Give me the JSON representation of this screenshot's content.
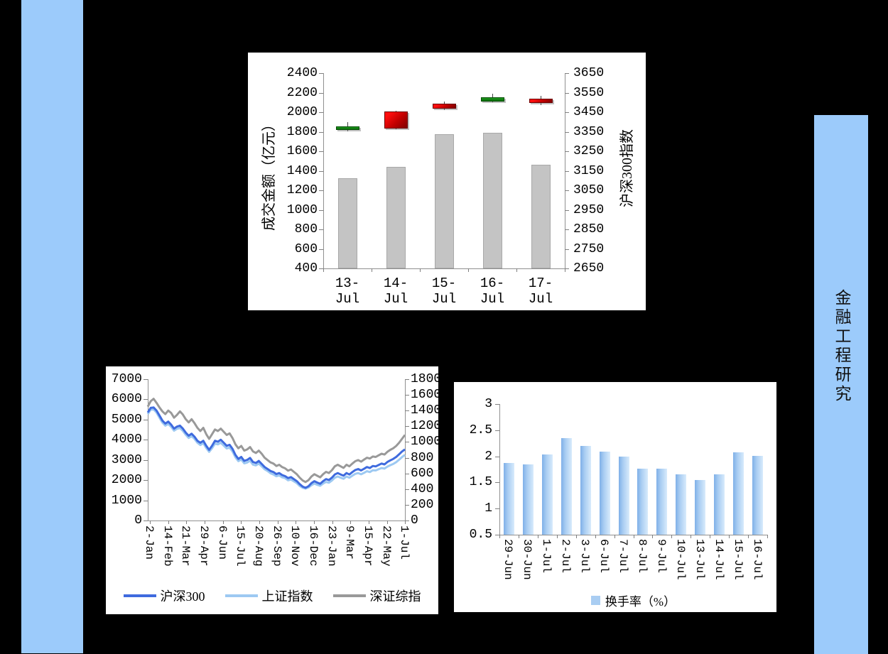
{
  "page": {
    "background": "#000000"
  },
  "side_bars": {
    "left": {
      "color": "#9CCBFB"
    },
    "right": {
      "color": "#9CCBFB",
      "title": "金融工程研究"
    }
  },
  "chart_data": [
    {
      "id": "volume-and-index",
      "type": "bar+candlestick",
      "categories": [
        "13-Jul",
        "14-Jul",
        "15-Jul",
        "16-Jul",
        "17-Jul"
      ],
      "left_axis": {
        "title": "成交金额（亿元）",
        "min": 400,
        "max": 2400,
        "step": 200,
        "ticks": [
          "2400",
          "2200",
          "2000",
          "1800",
          "1600",
          "1400",
          "1200",
          "1000",
          "800",
          "600",
          "400"
        ]
      },
      "right_axis": {
        "title": "沪深300指数",
        "min": 2650,
        "max": 3650,
        "step": 100,
        "ticks": [
          "3650",
          "3550",
          "3450",
          "3350",
          "3250",
          "3150",
          "3050",
          "2950",
          "2850",
          "2750",
          "2650"
        ]
      },
      "bars": {
        "name": "成交金额",
        "color": "#C4C4C4",
        "values": [
          1325,
          1440,
          1775,
          1790,
          1465
        ]
      },
      "candles": [
        {
          "date": "13-Jul",
          "open": 3378,
          "close": 3358,
          "high": 3400,
          "low": 3352,
          "direction": "down"
        },
        {
          "date": "14-Jul",
          "open": 3368,
          "close": 3452,
          "high": 3458,
          "low": 3362,
          "direction": "up"
        },
        {
          "date": "15-Jul",
          "open": 3468,
          "close": 3492,
          "high": 3505,
          "low": 3462,
          "direction": "up"
        },
        {
          "date": "16-Jul",
          "open": 3525,
          "close": 3505,
          "high": 3545,
          "low": 3500,
          "direction": "down"
        },
        {
          "date": "17-Jul",
          "open": 3498,
          "close": 3520,
          "high": 3532,
          "low": 3486,
          "direction": "up"
        }
      ],
      "candle_colors": {
        "up": "#D00000",
        "down": "#0E7A0E"
      }
    },
    {
      "id": "index-history-lines",
      "type": "line",
      "x_ticks": [
        "2-Jan",
        "14-Feb",
        "21-Mar",
        "29-Apr",
        "6-Jun",
        "15-Jul",
        "20-Aug",
        "26-Sep",
        "10-Nov",
        "16-Dec",
        "23-Jan",
        "9-Mar",
        "15-Apr",
        "22-May",
        "1-Jul"
      ],
      "left_axis": {
        "min": 0,
        "max": 7000,
        "step": 1000,
        "ticks": [
          "7000",
          "6000",
          "5000",
          "4000",
          "3000",
          "2000",
          "1000",
          "0"
        ]
      },
      "right_axis": {
        "min": 0,
        "max": 1800,
        "step": 200,
        "ticks": [
          "1800",
          "1600",
          "1400",
          "1200",
          "1000",
          "800",
          "600",
          "400",
          "200",
          "0"
        ]
      },
      "legend": [
        {
          "label": "沪深300",
          "color": "#3F6BDE"
        },
        {
          "label": "上证指数",
          "color": "#9DC9F2"
        },
        {
          "label": "深证综指",
          "color": "#999999"
        }
      ],
      "series": [
        {
          "name": "沪深300",
          "axis": "left",
          "color": "#3F6BDE",
          "values": [
            5350,
            5580,
            5600,
            5450,
            5200,
            4950,
            4800,
            4900,
            4750,
            4550,
            4650,
            4700,
            4550,
            4350,
            4200,
            4300,
            4150,
            3950,
            3850,
            3950,
            3700,
            3500,
            3700,
            3950,
            3900,
            4000,
            3850,
            3700,
            3750,
            3550,
            3250,
            3050,
            3150,
            2950,
            3000,
            3100,
            2900,
            2850,
            2950,
            2800,
            2650,
            2550,
            2450,
            2400,
            2300,
            2350,
            2250,
            2200,
            2100,
            2150,
            2050,
            1950,
            1800,
            1680,
            1620,
            1700,
            1850,
            1950,
            1880,
            1820,
            1950,
            2050,
            2000,
            2120,
            2280,
            2350,
            2280,
            2220,
            2350,
            2280,
            2400,
            2500,
            2550,
            2480,
            2560,
            2650,
            2600,
            2700,
            2680,
            2750,
            2820,
            2780,
            2900,
            2980,
            3050,
            3150,
            3280,
            3420,
            3520
          ]
        },
        {
          "name": "上证指数",
          "axis": "left",
          "color": "#9DC9F2",
          "values": [
            5270,
            5490,
            5500,
            5350,
            5090,
            4850,
            4700,
            4780,
            4640,
            4450,
            4540,
            4580,
            4440,
            4250,
            4090,
            4180,
            4040,
            3850,
            3740,
            3830,
            3590,
            3400,
            3580,
            3810,
            3770,
            3850,
            3710,
            3570,
            3610,
            3420,
            3130,
            2940,
            3020,
            2830,
            2870,
            2960,
            2770,
            2730,
            2820,
            2680,
            2540,
            2450,
            2340,
            2280,
            2190,
            2230,
            2140,
            2100,
            1990,
            2030,
            1940,
            1850,
            1710,
            1620,
            1580,
            1640,
            1750,
            1830,
            1770,
            1720,
            1830,
            1910,
            1870,
            1980,
            2120,
            2180,
            2120,
            2070,
            2180,
            2120,
            2220,
            2310,
            2350,
            2290,
            2360,
            2440,
            2400,
            2490,
            2480,
            2540,
            2600,
            2570,
            2670,
            2740,
            2800,
            2890,
            3010,
            3140,
            3250
          ]
        },
        {
          "name": "深证综指",
          "axis": "right",
          "color": "#999999",
          "values": [
            1450,
            1520,
            1550,
            1500,
            1440,
            1390,
            1355,
            1400,
            1370,
            1310,
            1345,
            1390,
            1350,
            1290,
            1250,
            1290,
            1240,
            1180,
            1140,
            1180,
            1100,
            1040,
            1100,
            1160,
            1140,
            1170,
            1130,
            1090,
            1110,
            1050,
            970,
            920,
            950,
            890,
            905,
            935,
            880,
            860,
            890,
            850,
            800,
            770,
            740,
            725,
            695,
            710,
            680,
            665,
            635,
            650,
            620,
            590,
            545,
            510,
            490,
            515,
            560,
            590,
            570,
            550,
            590,
            620,
            605,
            640,
            690,
            710,
            690,
            670,
            710,
            690,
            725,
            755,
            770,
            750,
            775,
            800,
            790,
            815,
            810,
            830,
            850,
            840,
            875,
            900,
            920,
            950,
            990,
            1040,
            1090
          ]
        }
      ]
    },
    {
      "id": "turnover-rate",
      "type": "bar",
      "categories": [
        "29-Jun",
        "30-Jun",
        "1-Jul",
        "2-Jul",
        "3-Jul",
        "6-Jul",
        "7-Jul",
        "8-Jul",
        "9-Jul",
        "10-Jul",
        "13-Jul",
        "14-Jul",
        "15-Jul",
        "16-Jul"
      ],
      "values": [
        1.87,
        1.84,
        2.03,
        2.35,
        2.2,
        2.09,
        1.99,
        1.76,
        1.76,
        1.66,
        1.54,
        1.66,
        2.07,
        2.01
      ],
      "y_axis": {
        "min": 0.5,
        "max": 3,
        "step": 0.5,
        "ticks": [
          "3",
          "2.5",
          "2",
          "1.5",
          "1",
          "0.5"
        ]
      },
      "legend": {
        "label": "换手率（%）",
        "color": "#A9CDF2"
      },
      "bar_color": "#A9CDF2"
    }
  ]
}
